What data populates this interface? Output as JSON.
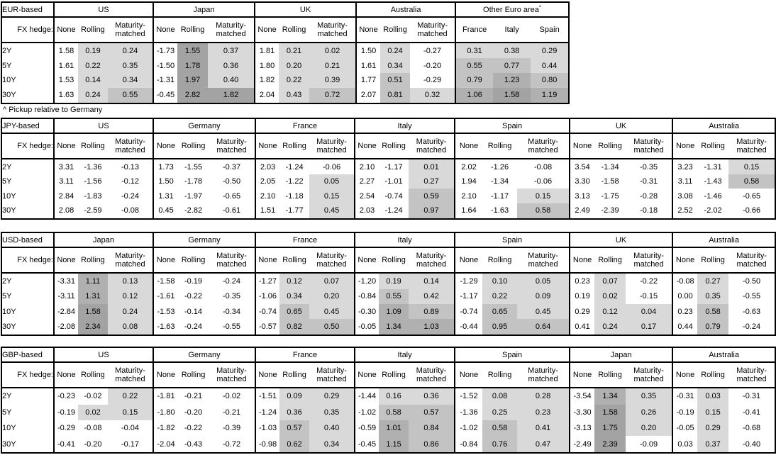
{
  "footnote": "^ Pickup relative to Germany",
  "fx_hedge_label": "FX hedge:",
  "row_labels": [
    "2Y",
    "5Y",
    "10Y",
    "30Y"
  ],
  "hedge_columns": [
    "None",
    "Rolling",
    "Maturity-matched"
  ],
  "shade_colors": {
    "none": "#ffffff",
    "bin1": "#d9d9d9",
    "bin2": "#c3c3c3",
    "bin3": "#b0b0b0",
    "bin4": "#a3a3a3"
  },
  "tables": [
    {
      "id": "eur",
      "label": "EUR-based",
      "groups": [
        {
          "name": "US",
          "rows": [
            [
              1.58,
              0.19,
              0.24
            ],
            [
              1.61,
              0.22,
              0.35
            ],
            [
              1.53,
              0.14,
              0.34
            ],
            [
              1.63,
              0.24,
              0.55
            ]
          ]
        },
        {
          "name": "Japan",
          "rows": [
            [
              -1.73,
              1.55,
              0.37
            ],
            [
              -1.5,
              1.78,
              0.36
            ],
            [
              -1.31,
              1.97,
              0.4
            ],
            [
              -0.45,
              2.82,
              1.82
            ]
          ]
        },
        {
          "name": "UK",
          "rows": [
            [
              1.81,
              0.21,
              0.02
            ],
            [
              1.8,
              0.2,
              0.21
            ],
            [
              1.82,
              0.22,
              0.39
            ],
            [
              2.04,
              0.43,
              0.72
            ]
          ]
        },
        {
          "name": "Australia",
          "rows": [
            [
              1.5,
              0.24,
              -0.27
            ],
            [
              1.61,
              0.34,
              -0.2
            ],
            [
              1.77,
              0.51,
              -0.29
            ],
            [
              2.07,
              0.81,
              0.32
            ]
          ]
        },
        {
          "name": "Other Euro area",
          "sup": "^",
          "equal": true,
          "cols": [
            "France",
            "Italy",
            "Spain"
          ],
          "rows": [
            [
              0.31,
              0.38,
              0.29
            ],
            [
              0.55,
              0.77,
              0.44
            ],
            [
              0.79,
              1.23,
              0.8
            ],
            [
              1.06,
              1.58,
              1.19
            ]
          ]
        }
      ]
    },
    {
      "id": "jpy",
      "label": "JPY-based",
      "groups": [
        {
          "name": "US",
          "rows": [
            [
              3.31,
              -1.36,
              -0.13
            ],
            [
              3.11,
              -1.56,
              -0.12
            ],
            [
              2.84,
              -1.83,
              -0.24
            ],
            [
              2.08,
              -2.59,
              -0.08
            ]
          ]
        },
        {
          "name": "Germany",
          "rows": [
            [
              1.73,
              -1.55,
              -0.37
            ],
            [
              1.5,
              -1.78,
              -0.5
            ],
            [
              1.31,
              -1.97,
              -0.65
            ],
            [
              0.45,
              -2.82,
              -0.61
            ]
          ]
        },
        {
          "name": "France",
          "rows": [
            [
              2.03,
              -1.24,
              -0.06
            ],
            [
              2.05,
              -1.22,
              0.05
            ],
            [
              2.1,
              -1.18,
              0.15
            ],
            [
              1.51,
              -1.77,
              0.45
            ]
          ]
        },
        {
          "name": "Italy",
          "rows": [
            [
              2.1,
              -1.17,
              0.01
            ],
            [
              2.27,
              -1.01,
              0.27
            ],
            [
              2.54,
              -0.74,
              0.59
            ],
            [
              2.03,
              -1.24,
              0.97
            ]
          ]
        },
        {
          "name": "Spain",
          "rows": [
            [
              2.02,
              -1.26,
              -0.08
            ],
            [
              1.94,
              -1.34,
              -0.06
            ],
            [
              2.1,
              -1.17,
              0.15
            ],
            [
              1.64,
              -1.63,
              0.58
            ]
          ]
        },
        {
          "name": "UK",
          "rows": [
            [
              3.54,
              -1.34,
              -0.35
            ],
            [
              3.3,
              -1.58,
              -0.31
            ],
            [
              3.13,
              -1.75,
              -0.28
            ],
            [
              2.49,
              -2.39,
              -0.18
            ]
          ]
        },
        {
          "name": "Australia",
          "rows": [
            [
              3.23,
              -1.31,
              0.15
            ],
            [
              3.11,
              -1.43,
              0.58
            ],
            [
              3.08,
              -1.46,
              -0.65
            ],
            [
              2.52,
              -2.02,
              -0.66
            ]
          ]
        }
      ]
    },
    {
      "id": "usd",
      "label": "USD-based",
      "groups": [
        {
          "name": "Japan",
          "rows": [
            [
              -3.31,
              1.11,
              0.13
            ],
            [
              -3.11,
              1.31,
              0.12
            ],
            [
              -2.84,
              1.58,
              0.24
            ],
            [
              -2.08,
              2.34,
              0.08
            ]
          ]
        },
        {
          "name": "Germany",
          "rows": [
            [
              -1.58,
              -0.19,
              -0.24
            ],
            [
              -1.61,
              -0.22,
              -0.35
            ],
            [
              -1.53,
              -0.14,
              -0.34
            ],
            [
              -1.63,
              -0.24,
              -0.55
            ]
          ]
        },
        {
          "name": "France",
          "rows": [
            [
              -1.27,
              0.12,
              0.07
            ],
            [
              -1.06,
              0.34,
              0.2
            ],
            [
              -0.74,
              0.65,
              0.45
            ],
            [
              -0.57,
              0.82,
              0.5
            ]
          ]
        },
        {
          "name": "Italy",
          "rows": [
            [
              -1.2,
              0.19,
              0.14
            ],
            [
              -0.84,
              0.55,
              0.42
            ],
            [
              -0.3,
              1.09,
              0.89
            ],
            [
              -0.05,
              1.34,
              1.03
            ]
          ]
        },
        {
          "name": "Spain",
          "rows": [
            [
              -1.29,
              0.1,
              0.05
            ],
            [
              -1.17,
              0.22,
              0.09
            ],
            [
              -0.74,
              0.65,
              0.45
            ],
            [
              -0.44,
              0.95,
              0.64
            ]
          ]
        },
        {
          "name": "UK",
          "rows": [
            [
              0.23,
              0.07,
              -0.22
            ],
            [
              0.19,
              0.02,
              -0.15
            ],
            [
              0.29,
              0.12,
              0.04
            ],
            [
              0.41,
              0.24,
              0.17
            ]
          ]
        },
        {
          "name": "Australia",
          "rows": [
            [
              -0.08,
              0.27,
              -0.5
            ],
            [
              0.0,
              0.35,
              -0.55
            ],
            [
              0.23,
              0.58,
              -0.63
            ],
            [
              0.44,
              0.79,
              -0.24
            ]
          ]
        }
      ]
    },
    {
      "id": "gbp",
      "label": "GBP-based",
      "groups": [
        {
          "name": "US",
          "rows": [
            [
              -0.23,
              -0.02,
              0.22
            ],
            [
              -0.19,
              0.02,
              0.15
            ],
            [
              -0.29,
              -0.08,
              -0.04
            ],
            [
              -0.41,
              -0.2,
              -0.17
            ]
          ]
        },
        {
          "name": "Germany",
          "rows": [
            [
              -1.81,
              -0.21,
              -0.02
            ],
            [
              -1.8,
              -0.2,
              -0.21
            ],
            [
              -1.82,
              -0.22,
              -0.39
            ],
            [
              -2.04,
              -0.43,
              -0.72
            ]
          ]
        },
        {
          "name": "France",
          "rows": [
            [
              -1.51,
              0.09,
              0.29
            ],
            [
              -1.24,
              0.36,
              0.35
            ],
            [
              -1.03,
              0.57,
              0.4
            ],
            [
              -0.98,
              0.62,
              0.34
            ]
          ]
        },
        {
          "name": "Italy",
          "rows": [
            [
              -1.44,
              0.16,
              0.36
            ],
            [
              -1.02,
              0.58,
              0.57
            ],
            [
              -0.59,
              1.01,
              0.84
            ],
            [
              -0.45,
              1.15,
              0.86
            ]
          ]
        },
        {
          "name": "Spain",
          "rows": [
            [
              -1.52,
              0.08,
              0.28
            ],
            [
              -1.36,
              0.25,
              0.23
            ],
            [
              -1.02,
              0.58,
              0.41
            ],
            [
              -0.84,
              0.76,
              0.47
            ]
          ]
        },
        {
          "name": "Japan",
          "rows": [
            [
              -3.54,
              1.34,
              0.35
            ],
            [
              -3.3,
              1.58,
              0.26
            ],
            [
              -3.13,
              1.75,
              0.2
            ],
            [
              -2.49,
              2.39,
              -0.09
            ]
          ]
        },
        {
          "name": "Australia",
          "rows": [
            [
              -0.31,
              0.03,
              -0.31
            ],
            [
              -0.19,
              0.15,
              -0.41
            ],
            [
              -0.05,
              0.29,
              -0.68
            ],
            [
              0.03,
              0.37,
              -0.4
            ]
          ]
        }
      ]
    }
  ]
}
